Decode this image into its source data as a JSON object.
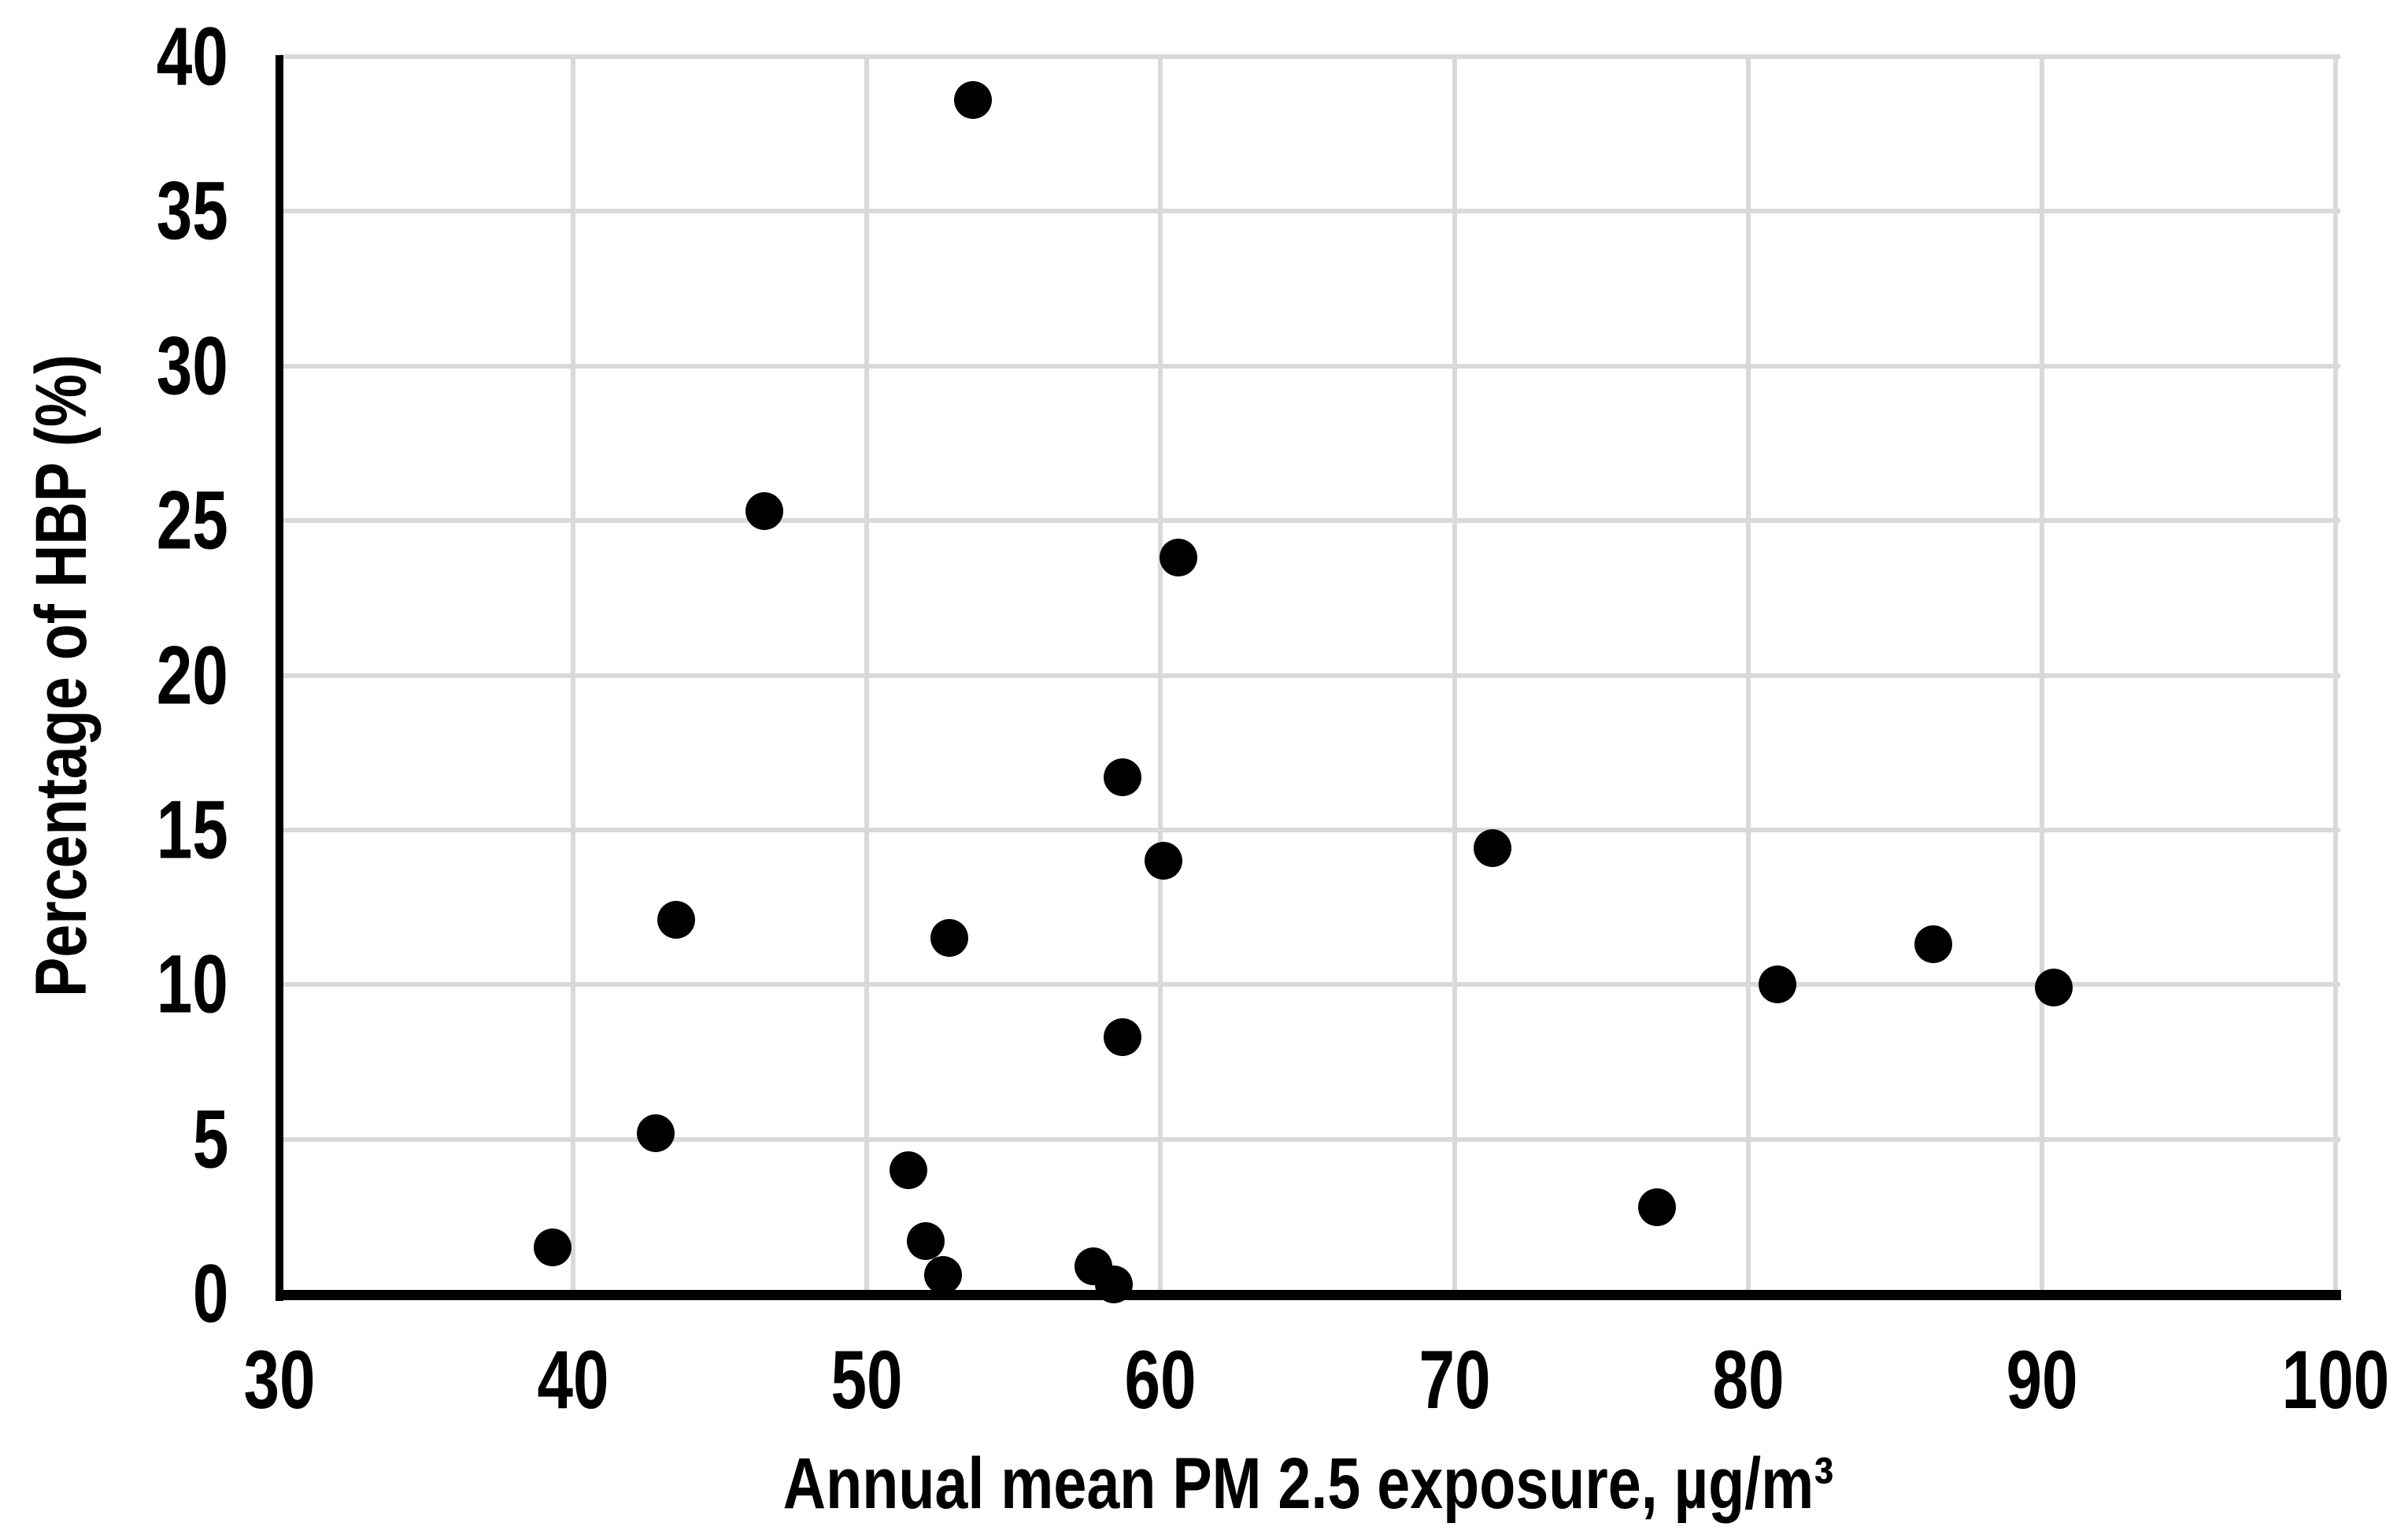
{
  "chart_data": {
    "type": "scatter",
    "title": "",
    "xlabel": "Annual mean PM 2.5 exposure, µg/m³",
    "ylabel": "Percentage of HBP (%)",
    "xlim": [
      30,
      100
    ],
    "ylim": [
      0,
      40
    ],
    "x_ticks": [
      30,
      40,
      50,
      60,
      70,
      80,
      90,
      100
    ],
    "y_ticks": [
      0,
      5,
      10,
      15,
      20,
      25,
      30,
      35,
      40
    ],
    "grid": true,
    "legend": false,
    "marker_color": "#000000",
    "gridline_color": "#d9d9d9",
    "axis_color": "#000000",
    "points": [
      {
        "x": 39.3,
        "y": 1.5
      },
      {
        "x": 42.8,
        "y": 5.2
      },
      {
        "x": 43.5,
        "y": 12.1
      },
      {
        "x": 46.5,
        "y": 25.3
      },
      {
        "x": 51.4,
        "y": 4.0
      },
      {
        "x": 52.0,
        "y": 1.7
      },
      {
        "x": 52.6,
        "y": 0.6
      },
      {
        "x": 52.8,
        "y": 11.5
      },
      {
        "x": 53.6,
        "y": 38.6
      },
      {
        "x": 57.7,
        "y": 0.9
      },
      {
        "x": 58.4,
        "y": 0.3
      },
      {
        "x": 58.7,
        "y": 16.7
      },
      {
        "x": 58.7,
        "y": 8.3
      },
      {
        "x": 60.1,
        "y": 14.0
      },
      {
        "x": 60.6,
        "y": 23.8
      },
      {
        "x": 71.3,
        "y": 14.4
      },
      {
        "x": 76.9,
        "y": 2.8
      },
      {
        "x": 81.0,
        "y": 10.0
      },
      {
        "x": 86.3,
        "y": 11.3
      },
      {
        "x": 90.4,
        "y": 9.9
      }
    ]
  }
}
